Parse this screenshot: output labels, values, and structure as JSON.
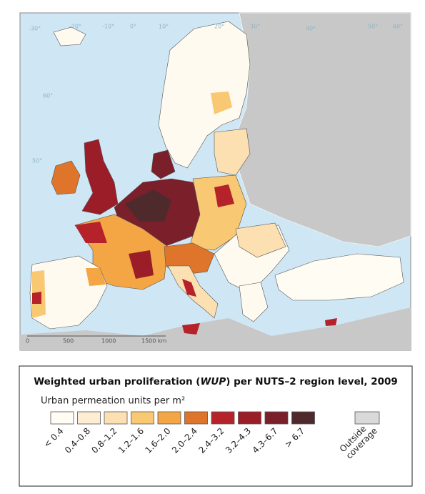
{
  "map": {
    "graticule_labels": [
      "-30°",
      "-20°",
      "-10°",
      "0°",
      "10°",
      "20°",
      "30°",
      "40°",
      "50°",
      "60°",
      "60°",
      "50°"
    ],
    "scale_labels": [
      "0",
      "500",
      "1000",
      "1500 km"
    ]
  },
  "legend": {
    "title": {
      "before": "Weighted urban proliferation (",
      "italic": "WUP",
      "after": ") per NUTS–2 region level, 2009"
    },
    "subtitle": "Urban permeation units per m²",
    "classes": [
      {
        "label": "< 0.4",
        "color": "#fffcf3"
      },
      {
        "label": "0.4–0.8",
        "color": "#fdedd2"
      },
      {
        "label": "0.8–1.2",
        "color": "#fde0b2"
      },
      {
        "label": "1.2–1.6",
        "color": "#f9c872"
      },
      {
        "label": "1.6–2.0",
        "color": "#f4a644"
      },
      {
        "label": "2.0–2.4",
        "color": "#df742b"
      },
      {
        "label": "2.4–3.2",
        "color": "#b5222a"
      },
      {
        "label": "3.2–4.3",
        "color": "#9b1d28"
      },
      {
        "label": "4.3–6.7",
        "color": "#7b1f2b"
      },
      {
        "label": "> 6.7",
        "color": "#4f2a2c"
      }
    ],
    "outside": {
      "lines": [
        "Outside",
        "coverage"
      ],
      "color": "#d9d9d9"
    }
  }
}
